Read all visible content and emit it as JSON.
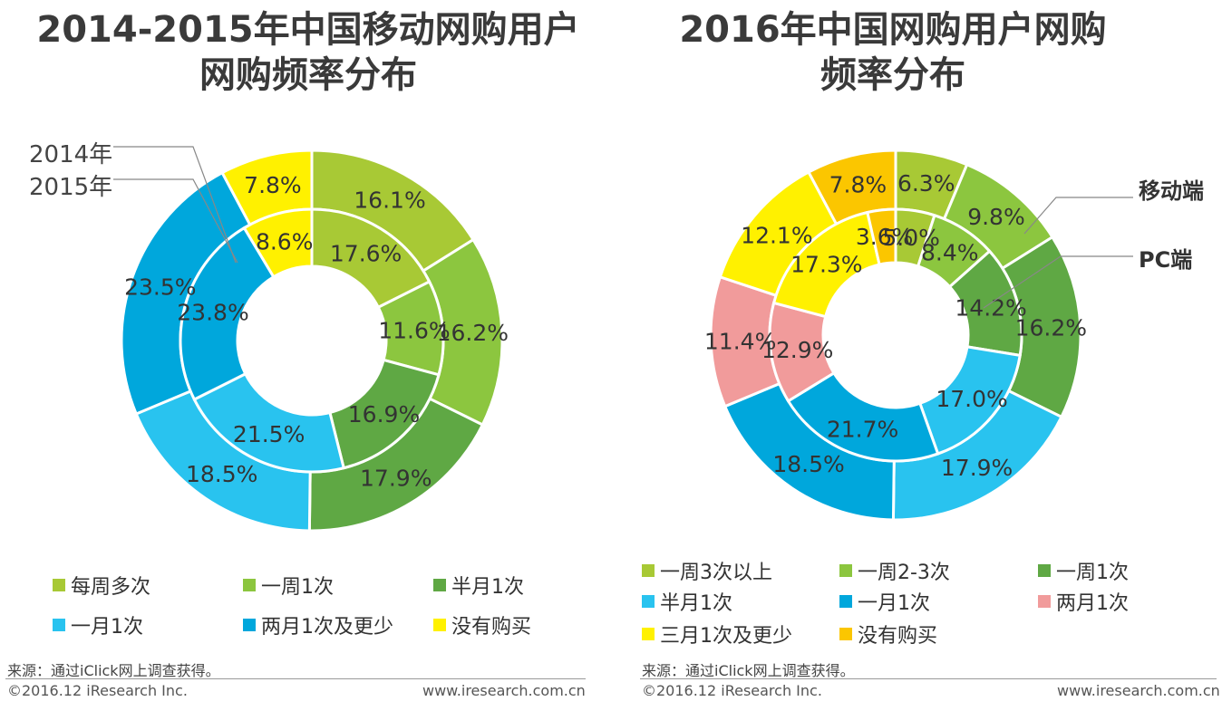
{
  "chart_data": [
    {
      "type": "donut",
      "title": "2014-2015年中国移动网购用户网购频率分布",
      "ring_labels": {
        "outer": "2014年",
        "inner": "2015年"
      },
      "categories": [
        "每周多次",
        "一周1次",
        "半月1次",
        "一月1次",
        "两月1次及更少",
        "没有购买"
      ],
      "colors": [
        "#a8c935",
        "#8cc63f",
        "#5fa844",
        "#29c3ef",
        "#00a7dc",
        "#fff100"
      ],
      "series": [
        {
          "name": "2014年",
          "ring": "outer",
          "values": [
            16.1,
            16.2,
            17.9,
            18.5,
            23.5,
            7.8
          ]
        },
        {
          "name": "2015年",
          "ring": "inner",
          "values": [
            17.6,
            11.6,
            16.9,
            21.5,
            23.8,
            8.6
          ]
        }
      ]
    },
    {
      "type": "donut",
      "title": "2016年中国网购用户网购频率分布",
      "ring_labels": {
        "outer": "移动端",
        "inner": "PC端"
      },
      "categories": [
        "一周3次以上",
        "一周2-3次",
        "一周1次",
        "半月1次",
        "一月1次",
        "两月1次",
        "三月1次及更少",
        "没有购买"
      ],
      "colors": [
        "#a8c935",
        "#8cc63f",
        "#5fa844",
        "#29c3ef",
        "#00a7dc",
        "#f19b9b",
        "#fff100",
        "#fbc600"
      ],
      "series": [
        {
          "name": "移动端",
          "ring": "outer",
          "values": [
            6.3,
            9.8,
            16.2,
            17.9,
            18.5,
            11.4,
            12.1,
            7.8
          ]
        },
        {
          "name": "PC端",
          "ring": "inner",
          "values": [
            5.0,
            8.4,
            14.2,
            17.0,
            21.7,
            12.9,
            17.3,
            3.6
          ]
        }
      ]
    }
  ],
  "left": {
    "title_line1": "2014-2015年中国移动网购用户",
    "title_line2": "网购频率分布",
    "label_2014": "2014年",
    "label_2015": "2015年",
    "legend": [
      "每周多次",
      "一周1次",
      "半月1次",
      "一月1次",
      "两月1次及更少",
      "没有购买"
    ],
    "source": "来源：通过iClick网上调查获得。",
    "copyright": "©2016.12 iResearch Inc.",
    "site": "www.iresearch.com.cn"
  },
  "right": {
    "title_line1": "2016年中国网购用户网购",
    "title_line2": "频率分布",
    "label_mobile": "移动端",
    "label_pc": "PC端",
    "legend": [
      "一周3次以上",
      "一周2-3次",
      "一周1次",
      "半月1次",
      "一月1次",
      "两月1次",
      "三月1次及更少",
      "没有购买"
    ],
    "source": "来源：通过iClick网上调查获得。",
    "copyright": "©2016.12 iResearch Inc.",
    "site": "www.iresearch.com.cn"
  }
}
